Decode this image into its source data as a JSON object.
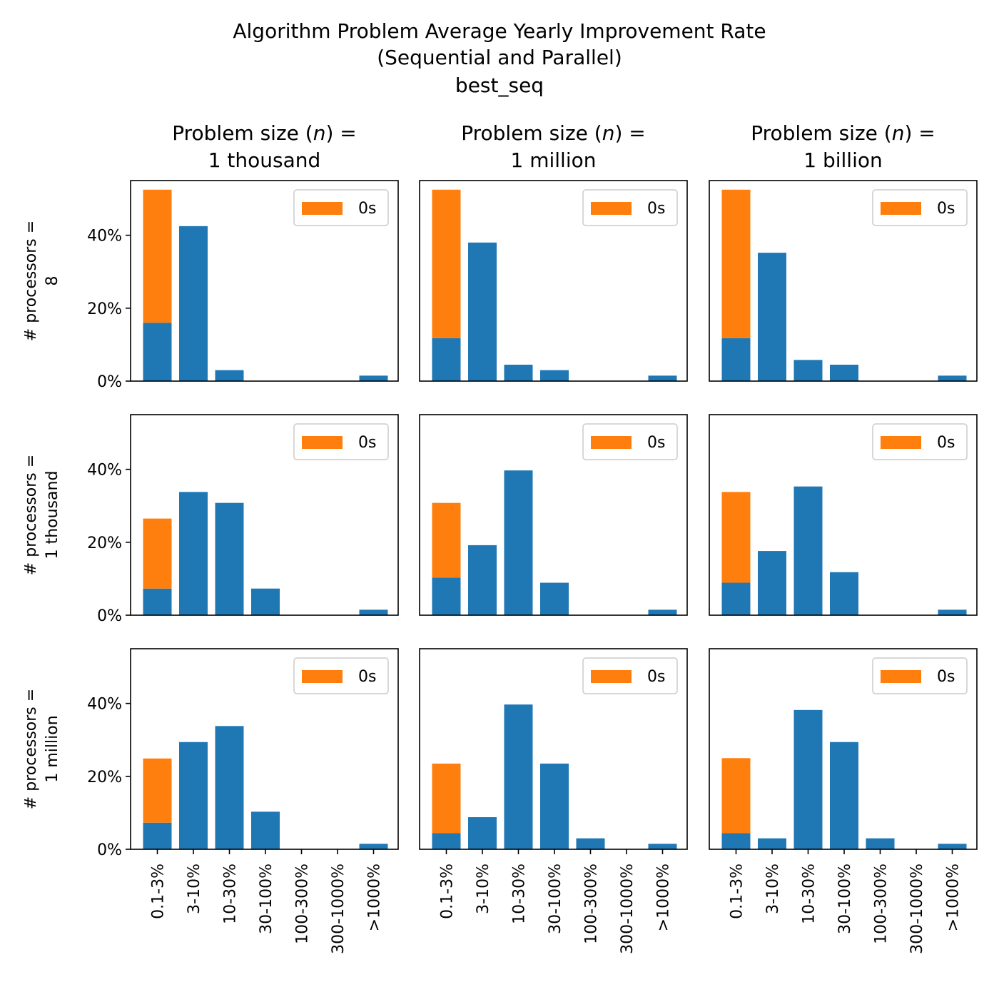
{
  "figure": {
    "title_lines": [
      "Algorithm Problem Average Yearly Improvement Rate",
      "(Sequential and Parallel)",
      "best_seq"
    ]
  },
  "columns": [
    {
      "prefix": "Problem size (",
      "var": "n",
      "suffix": ") =",
      "value": "1 thousand"
    },
    {
      "prefix": "Problem size (",
      "var": "n",
      "suffix": ") =",
      "value": "1 million"
    },
    {
      "prefix": "Problem size (",
      "var": "n",
      "suffix": ") =",
      "value": "1 billion"
    }
  ],
  "rows": [
    {
      "line1": "# processors =",
      "line2": "8"
    },
    {
      "line1": "# processors =",
      "line2": "1 thousand"
    },
    {
      "line1": "# processors =",
      "line2": "1 million"
    }
  ],
  "colors": {
    "base": "#1f77b4",
    "zeros": "#ff7f0e"
  },
  "chart_data": {
    "type": "bar",
    "stacked": true,
    "layout": "3x3 small multiples (rows = # processors, columns = problem size)",
    "categories": [
      "0.1-3%",
      "3-10%",
      "10-30%",
      "30-100%",
      "100-300%",
      "300-1000%",
      ">1000%"
    ],
    "ylim": [
      0,
      55
    ],
    "yticks": [
      0,
      20,
      40
    ],
    "ytick_labels": [
      "0%",
      "20%",
      "40%"
    ],
    "legend": {
      "placement": "upper right",
      "label": "0s"
    },
    "series": [
      {
        "name": "",
        "role": "base",
        "color": "#1f77b4"
      },
      {
        "name": "0s",
        "role": "zeros",
        "color": "#ff7f0e"
      }
    ],
    "panels": [
      {
        "row": 0,
        "col": 0,
        "values": [
          16,
          42.5,
          3,
          0,
          0,
          0,
          1.5
        ],
        "zeros": [
          36.5,
          0,
          0,
          0,
          0,
          0,
          0
        ]
      },
      {
        "row": 0,
        "col": 1,
        "values": [
          11.8,
          38,
          4.5,
          3,
          0,
          0,
          1.5
        ],
        "zeros": [
          40.7,
          0,
          0,
          0,
          0,
          0,
          0
        ]
      },
      {
        "row": 0,
        "col": 2,
        "values": [
          11.8,
          35.2,
          5.8,
          4.5,
          0,
          0,
          1.5
        ],
        "zeros": [
          40.7,
          0,
          0,
          0,
          0,
          0,
          0
        ]
      },
      {
        "row": 1,
        "col": 0,
        "values": [
          7.3,
          33.8,
          30.8,
          7.3,
          0,
          0,
          1.5
        ],
        "zeros": [
          19.2,
          0,
          0,
          0,
          0,
          0,
          0
        ]
      },
      {
        "row": 1,
        "col": 1,
        "values": [
          10.3,
          19.2,
          39.7,
          8.9,
          0,
          0,
          1.5
        ],
        "zeros": [
          20.5,
          0,
          0,
          0,
          0,
          0,
          0
        ]
      },
      {
        "row": 1,
        "col": 2,
        "values": [
          8.9,
          17.6,
          35.3,
          11.8,
          0,
          0,
          1.5
        ],
        "zeros": [
          24.9,
          0,
          0,
          0,
          0,
          0,
          0
        ]
      },
      {
        "row": 2,
        "col": 0,
        "values": [
          7.3,
          29.4,
          33.8,
          10.3,
          0,
          0,
          1.5
        ],
        "zeros": [
          17.6,
          0,
          0,
          0,
          0,
          0,
          0
        ]
      },
      {
        "row": 2,
        "col": 1,
        "values": [
          4.4,
          8.8,
          39.7,
          23.5,
          3,
          0,
          1.5
        ],
        "zeros": [
          19.1,
          0,
          0,
          0,
          0,
          0,
          0
        ]
      },
      {
        "row": 2,
        "col": 2,
        "values": [
          4.4,
          3,
          38.2,
          29.4,
          3,
          0,
          1.5
        ],
        "zeros": [
          20.6,
          0,
          0,
          0,
          0,
          0,
          0
        ]
      }
    ]
  }
}
